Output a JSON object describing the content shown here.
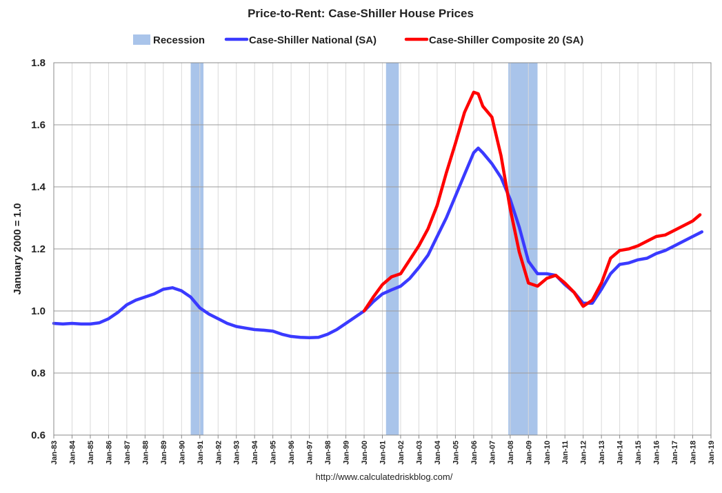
{
  "chart_data": {
    "type": "line",
    "title": "Price-to-Rent: Case-Shiller House Prices",
    "ylabel": "January 2000 = 1.0",
    "xlabel": "",
    "source": "http://www.calculatedriskblog.com/",
    "ylim": [
      0.6,
      1.8
    ],
    "yticks": [
      "0.6",
      "0.8",
      "1.0",
      "1.2",
      "1.4",
      "1.6",
      "1.8"
    ],
    "ytick_values": [
      0.6,
      0.8,
      1.0,
      1.2,
      1.4,
      1.6,
      1.8
    ],
    "xlim": [
      1983,
      2019
    ],
    "xtick_labels": [
      "Jan-83",
      "Jan-84",
      "Jan-85",
      "Jan-86",
      "Jan-87",
      "Jan-88",
      "Jan-89",
      "Jan-90",
      "Jan-91",
      "Jan-92",
      "Jan-93",
      "Jan-94",
      "Jan-95",
      "Jan-96",
      "Jan-97",
      "Jan-98",
      "Jan-99",
      "Jan-00",
      "Jan-01",
      "Jan-02",
      "Jan-03",
      "Jan-04",
      "Jan-05",
      "Jan-06",
      "Jan-07",
      "Jan-08",
      "Jan-09",
      "Jan-10",
      "Jan-11",
      "Jan-12",
      "Jan-13",
      "Jan-14",
      "Jan-15",
      "Jan-16",
      "Jan-17",
      "Jan-18",
      "Jan-19"
    ],
    "grid": true,
    "legend_position": "top",
    "legend": [
      {
        "label": "Recession",
        "color": "#a9c4ea",
        "kind": "bar"
      },
      {
        "label": "Case-Shiller National (SA)",
        "color": "#3a3aff",
        "kind": "line"
      },
      {
        "label": "Case-Shiller Composite 20 (SA)",
        "color": "#ff0000",
        "kind": "line"
      }
    ],
    "recessions": [
      [
        1990.5,
        1991.2
      ],
      [
        2001.2,
        2001.9
      ],
      [
        2007.9,
        2009.5
      ]
    ],
    "series": [
      {
        "name": "Case-Shiller National (SA)",
        "color": "#3a3aff",
        "x": [
          1983,
          1983.5,
          1984,
          1984.5,
          1985,
          1985.5,
          1986,
          1986.5,
          1987,
          1987.5,
          1988,
          1988.5,
          1989,
          1989.5,
          1990,
          1990.5,
          1991,
          1991.5,
          1992,
          1992.5,
          1993,
          1993.5,
          1994,
          1994.5,
          1995,
          1995.5,
          1996,
          1996.5,
          1997,
          1997.5,
          1998,
          1998.5,
          1999,
          1999.5,
          2000,
          2000.5,
          2001,
          2001.5,
          2002,
          2002.5,
          2003,
          2003.5,
          2004,
          2004.5,
          2005,
          2005.5,
          2006,
          2006.25,
          2006.5,
          2007,
          2007.5,
          2008,
          2008.5,
          2009,
          2009.5,
          2010,
          2010.5,
          2011,
          2011.5,
          2012,
          2012.5,
          2013,
          2013.5,
          2014,
          2014.5,
          2015,
          2015.5,
          2016,
          2016.5,
          2017,
          2017.5,
          2018,
          2018.5
        ],
        "values": [
          0.96,
          0.958,
          0.96,
          0.958,
          0.958,
          0.962,
          0.975,
          0.995,
          1.02,
          1.035,
          1.045,
          1.055,
          1.07,
          1.075,
          1.065,
          1.045,
          1.01,
          0.99,
          0.975,
          0.96,
          0.95,
          0.945,
          0.94,
          0.938,
          0.935,
          0.925,
          0.918,
          0.915,
          0.914,
          0.915,
          0.925,
          0.94,
          0.96,
          0.98,
          1.0,
          1.03,
          1.055,
          1.068,
          1.08,
          1.105,
          1.14,
          1.18,
          1.24,
          1.3,
          1.37,
          1.44,
          1.51,
          1.525,
          1.51,
          1.475,
          1.43,
          1.36,
          1.27,
          1.16,
          1.12,
          1.12,
          1.115,
          1.085,
          1.06,
          1.025,
          1.025,
          1.07,
          1.12,
          1.15,
          1.155,
          1.165,
          1.17,
          1.185,
          1.195,
          1.21,
          1.225,
          1.24,
          1.255
        ]
      },
      {
        "name": "Case-Shiller Composite 20 (SA)",
        "color": "#ff0000",
        "x": [
          2000,
          2000.5,
          2001,
          2001.5,
          2002,
          2002.5,
          2003,
          2003.5,
          2004,
          2004.5,
          2005,
          2005.5,
          2006,
          2006.25,
          2006.5,
          2007,
          2007.5,
          2008,
          2008.5,
          2009,
          2009.5,
          2010,
          2010.5,
          2011,
          2011.5,
          2012,
          2012.5,
          2013,
          2013.5,
          2014,
          2014.5,
          2015,
          2015.5,
          2016,
          2016.5,
          2017,
          2017.5,
          2018,
          2018.4
        ],
        "values": [
          1.0,
          1.045,
          1.085,
          1.11,
          1.12,
          1.165,
          1.21,
          1.265,
          1.34,
          1.445,
          1.54,
          1.64,
          1.705,
          1.7,
          1.66,
          1.625,
          1.5,
          1.33,
          1.19,
          1.09,
          1.08,
          1.105,
          1.115,
          1.09,
          1.06,
          1.015,
          1.035,
          1.09,
          1.17,
          1.195,
          1.2,
          1.21,
          1.225,
          1.24,
          1.245,
          1.26,
          1.275,
          1.29,
          1.31
        ]
      }
    ]
  }
}
